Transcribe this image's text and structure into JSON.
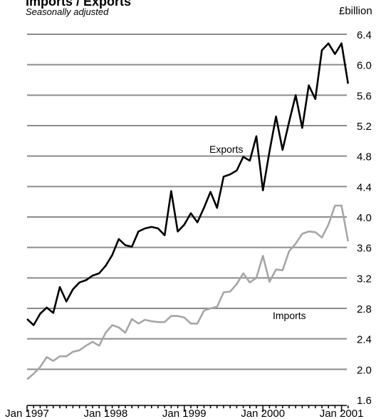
{
  "chart_data": {
    "type": "line",
    "title": "Imports / Exports",
    "subtitle": "Seasonally adjusted",
    "unit": "£billion",
    "grid": true,
    "ylim": [
      1.6,
      6.4
    ],
    "yticks": [
      "6.4",
      "6.0",
      "5.6",
      "5.2",
      "4.8",
      "4.4",
      "4.0",
      "3.6",
      "3.2",
      "2.8",
      "2.4",
      "2.0",
      "1.6"
    ],
    "xticks": [
      "Jan 1997",
      "Jan 1998",
      "Jan 1999",
      "Jan 2000",
      "Jan 2001"
    ],
    "x": [
      "1997-01",
      "1997-02",
      "1997-03",
      "1997-04",
      "1997-05",
      "1997-06",
      "1997-07",
      "1997-08",
      "1997-09",
      "1997-10",
      "1997-11",
      "1997-12",
      "1998-01",
      "1998-02",
      "1998-03",
      "1998-04",
      "1998-05",
      "1998-06",
      "1998-07",
      "1998-08",
      "1998-09",
      "1998-10",
      "1998-11",
      "1998-12",
      "1999-01",
      "1999-02",
      "1999-03",
      "1999-04",
      "1999-05",
      "1999-06",
      "1999-07",
      "1999-08",
      "1999-09",
      "1999-10",
      "1999-11",
      "1999-12",
      "2000-01",
      "2000-02",
      "2000-03",
      "2000-04",
      "2000-05",
      "2000-06",
      "2000-07",
      "2000-08",
      "2000-09",
      "2000-10",
      "2000-11",
      "2000-12",
      "2001-01",
      "2001-02"
    ],
    "series": [
      {
        "name": "Exports",
        "color": "#000000",
        "values": [
          2.66,
          2.58,
          2.73,
          2.81,
          2.74,
          3.08,
          2.89,
          3.05,
          3.14,
          3.17,
          3.23,
          3.26,
          3.36,
          3.5,
          3.71,
          3.63,
          3.61,
          3.81,
          3.85,
          3.87,
          3.85,
          3.76,
          4.34,
          3.81,
          3.9,
          4.05,
          3.93,
          4.12,
          4.33,
          4.12,
          4.53,
          4.56,
          4.61,
          4.79,
          4.74,
          5.06,
          4.35,
          4.86,
          5.32,
          4.88,
          5.25,
          5.6,
          5.17,
          5.73,
          5.55,
          6.19,
          6.28,
          6.14,
          6.28,
          5.75
        ]
      },
      {
        "name": "Imports",
        "color": "#a6a6a6",
        "values": [
          1.87,
          1.94,
          2.03,
          2.16,
          2.11,
          2.17,
          2.17,
          2.23,
          2.25,
          2.31,
          2.36,
          2.31,
          2.48,
          2.58,
          2.55,
          2.48,
          2.66,
          2.6,
          2.65,
          2.63,
          2.62,
          2.62,
          2.7,
          2.7,
          2.68,
          2.6,
          2.6,
          2.77,
          2.8,
          2.82,
          3.01,
          3.02,
          3.12,
          3.26,
          3.14,
          3.2,
          3.49,
          3.15,
          3.31,
          3.3,
          3.55,
          3.65,
          3.78,
          3.81,
          3.8,
          3.73,
          3.9,
          4.15,
          4.15,
          3.68
        ]
      }
    ]
  }
}
